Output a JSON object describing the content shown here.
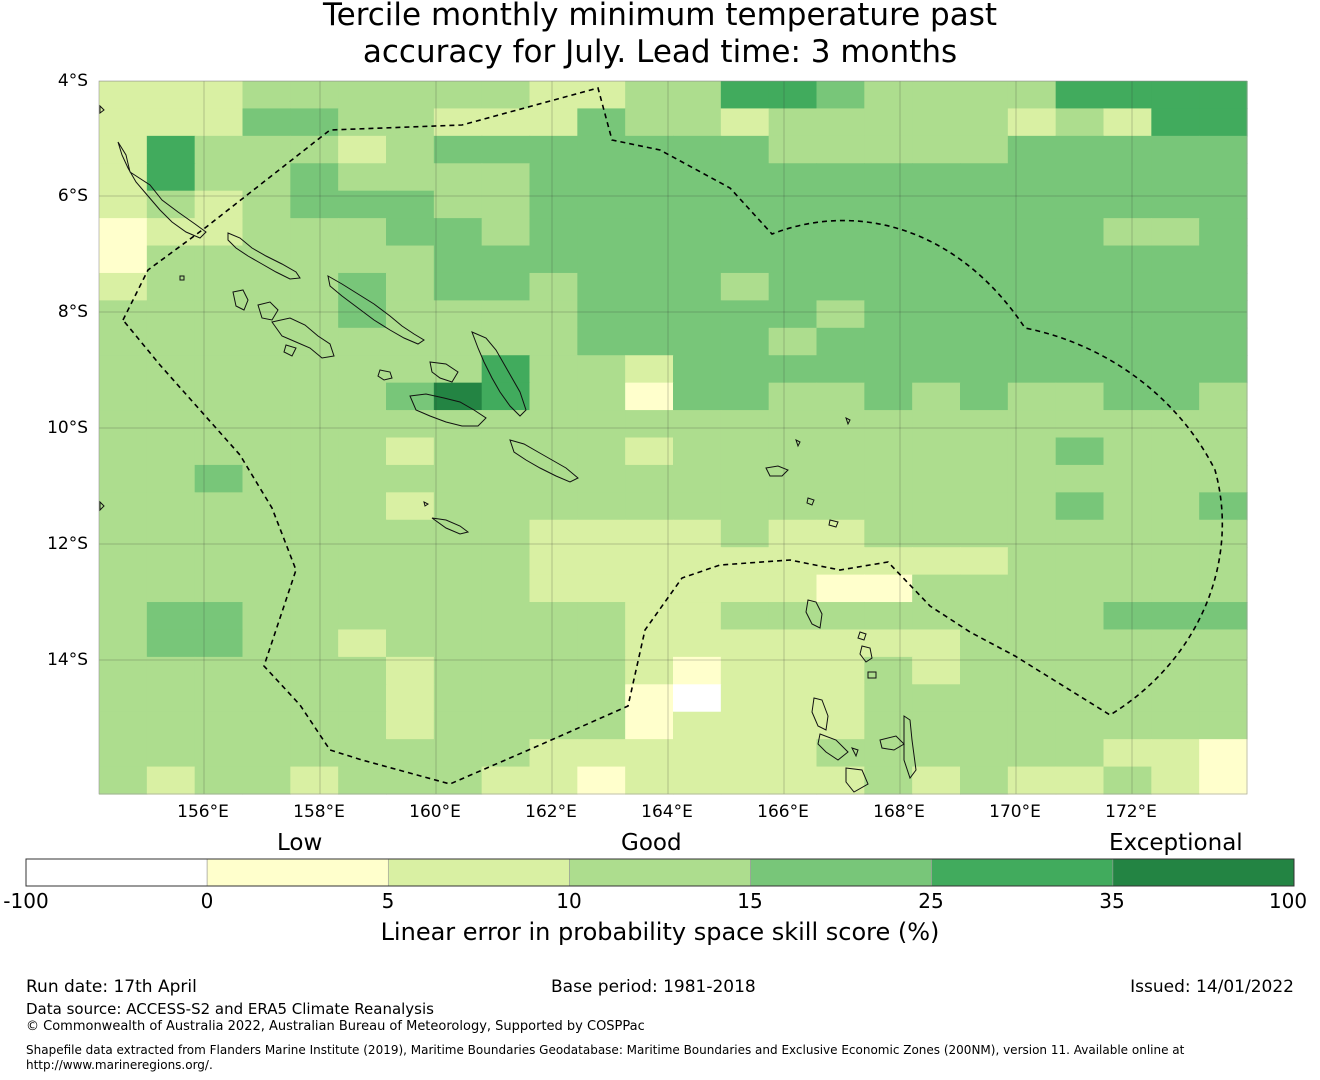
{
  "title": {
    "line1": "Tercile monthly minimum temperature past",
    "line2": "accuracy for July. Lead time: 3 months"
  },
  "map": {
    "lat_labels": [
      "4°S",
      "6°S",
      "8°S",
      "10°S",
      "12°S",
      "14°S"
    ],
    "lon_labels": [
      "156°E",
      "158°E",
      "160°E",
      "162°E",
      "164°E",
      "166°E",
      "168°E",
      "170°E",
      "172°E"
    ]
  },
  "legend": {
    "categories": [
      "Low",
      "Good",
      "Exceptional"
    ],
    "ticks": [
      "-100",
      "0",
      "5",
      "10",
      "15",
      "25",
      "35",
      "100"
    ],
    "colors": [
      "#ffffff",
      "#ffffcc",
      "#d9f0a3",
      "#addd8e",
      "#78c679",
      "#41ab5d",
      "#238443"
    ],
    "title": "Linear error in probability space skill score (%)"
  },
  "footer": {
    "run_date": "Run date: 17th April",
    "base_period": "Base period: 1981-2018",
    "issued": "Issued: 14/01/2022",
    "data_source": "Data source: ACCESS-S2 and ERA5 Climate Reanalysis",
    "copyright": "© Commonwealth of Australia 2022, Australian Bureau of Meteorology, Supported by COSPPac",
    "shapefile": "Shapefile data extracted from Flanders Marine Institute (2019), Maritime Boundaries Geodatabase: Maritime Boundaries and Exclusive Economic Zones (200NM), version 11. Available online at http://www.marineregions.org/."
  },
  "grid_rows": [
    "2223333332233554333355556",
    "2224433222433233333232556",
    "2533323444444433333444444",
    "2533433334444444444444444",
    "2323444334444444444444444",
    "1223334434444444444443344",
    "1333333444444444444444444",
    "2333343443444344444444444",
    "3333343333444443444444444",
    "3333333333444434444444444",
    "3333333353324444444444444",
    "3333334653314433434334433",
    "3333333333333333333333333",
    "3333332333323333333343333",
    "3343333333333333333333334",
    "3333332333333333333343344",
    "3333333332222322333333333",
    "3333333332222222222333333",
    "3333333332222221133333333",
    "3443333333322333333334444",
    "3443323333322222223333333",
    "3333332333321222323333333",
    "3333332333310222333333333",
    "3333332333312222333333333",
    "3333333332222223333332211",
    "3233233322122222323223211"
  ]
}
